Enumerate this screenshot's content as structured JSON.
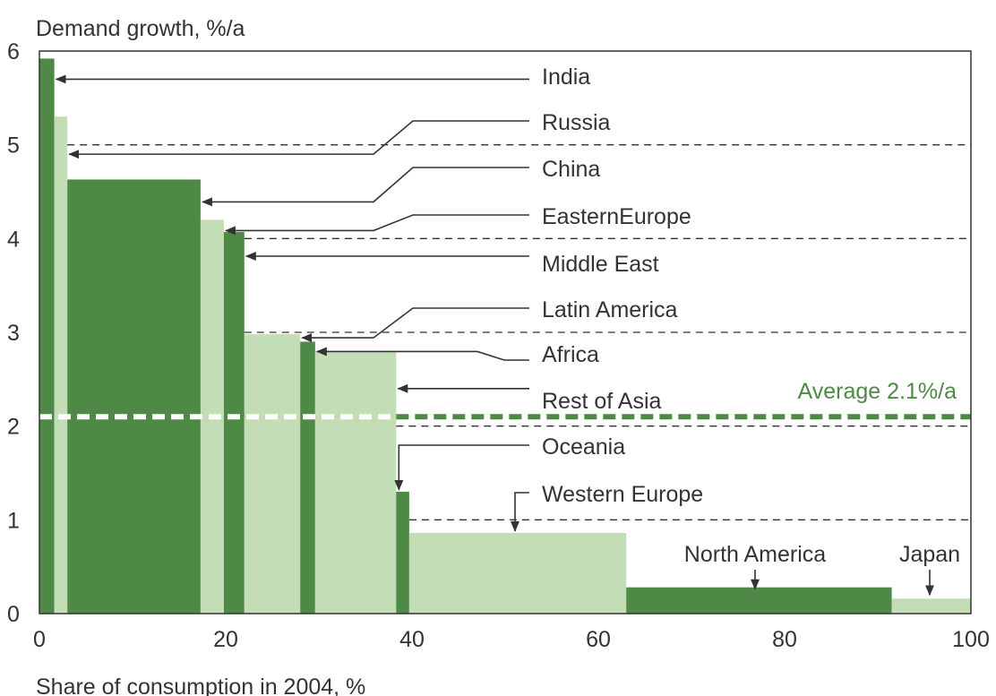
{
  "chart_data": {
    "type": "bar",
    "title": "",
    "ylabel": "Demand growth, %/a",
    "xlabel": "Share of consumption in 2004, %",
    "xlim": [
      0,
      100
    ],
    "ylim": [
      0,
      6
    ],
    "x_ticks": [
      "0",
      "20",
      "40",
      "60",
      "80",
      "100"
    ],
    "y_ticks": [
      "0",
      "1",
      "2",
      "3",
      "4",
      "5",
      "6"
    ],
    "reference_lines": [
      1,
      2,
      3,
      4,
      5
    ],
    "average": {
      "label": "Average 2.1%/a",
      "value": 2.1
    },
    "colors": {
      "dark": "#4e8a45",
      "light": "#c3ddb6",
      "average": "#4e8a45",
      "frame": "#333333"
    },
    "series": [
      {
        "name": "India",
        "x_start": 0.0,
        "x_end": 1.6,
        "value": 5.92,
        "shade": "dark"
      },
      {
        "name": "Russia",
        "x_start": 1.6,
        "x_end": 3.0,
        "value": 5.3,
        "shade": "light"
      },
      {
        "name": "China",
        "x_start": 3.0,
        "x_end": 17.3,
        "value": 4.63,
        "shade": "dark"
      },
      {
        "name": "EasternEurope",
        "x_start": 17.3,
        "x_end": 19.8,
        "value": 4.2,
        "shade": "light"
      },
      {
        "name": "Middle East",
        "x_start": 19.8,
        "x_end": 22.0,
        "value": 4.07,
        "shade": "dark"
      },
      {
        "name": "Latin America",
        "x_start": 22.0,
        "x_end": 28.0,
        "value": 2.98,
        "shade": "light"
      },
      {
        "name": "Africa",
        "x_start": 28.0,
        "x_end": 29.6,
        "value": 2.9,
        "shade": "dark"
      },
      {
        "name": "Rest of Asia",
        "x_start": 29.6,
        "x_end": 38.3,
        "value": 2.8,
        "shade": "light"
      },
      {
        "name": "Oceania",
        "x_start": 38.3,
        "x_end": 39.7,
        "value": 1.3,
        "shade": "dark"
      },
      {
        "name": "Western Europe",
        "x_start": 39.7,
        "x_end": 63.0,
        "value": 0.86,
        "shade": "light"
      },
      {
        "name": "North America",
        "x_start": 63.0,
        "x_end": 91.5,
        "value": 0.28,
        "shade": "dark"
      },
      {
        "name": "Japan",
        "x_start": 91.5,
        "x_end": 100.0,
        "value": 0.16,
        "shade": "light"
      }
    ]
  }
}
